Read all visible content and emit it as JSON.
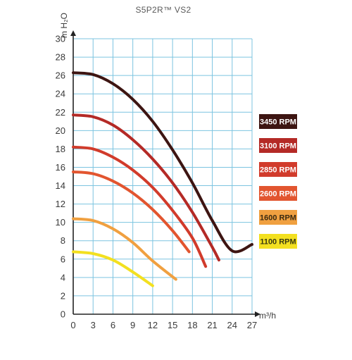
{
  "chart_data": {
    "type": "line",
    "title": "S5P2R™ VS2",
    "xlabel": "m³/h",
    "ylabel": "m H₂O",
    "xlim": [
      0,
      27
    ],
    "ylim": [
      0,
      30
    ],
    "xticks": [
      0,
      3,
      6,
      9,
      12,
      15,
      18,
      21,
      24,
      27
    ],
    "yticks": [
      0,
      2,
      4,
      6,
      8,
      10,
      12,
      14,
      16,
      18,
      20,
      22,
      24,
      26,
      28,
      30
    ],
    "grid": true,
    "legend_position": "right",
    "series": [
      {
        "name": "3450 RPM",
        "color": "#3d1512",
        "text_color": "#ffffff",
        "x": [
          0,
          3,
          6,
          9,
          12,
          15,
          18,
          21,
          24,
          27
        ],
        "y": [
          26.3,
          26.1,
          25.1,
          23.4,
          21.0,
          17.9,
          14.3,
          10.2,
          6.9,
          7.6
        ]
      },
      {
        "name": "3100 RPM",
        "color": "#b42a26",
        "text_color": "#ffffff",
        "x": [
          0,
          3,
          6,
          9,
          12,
          15,
          18,
          21,
          22
        ],
        "y": [
          21.7,
          21.5,
          20.6,
          19.0,
          16.9,
          14.3,
          11.1,
          7.3,
          5.9
        ]
      },
      {
        "name": "2850 RPM",
        "color": "#d13b2b",
        "text_color": "#ffffff",
        "x": [
          0,
          3,
          6,
          9,
          12,
          15,
          18,
          20
        ],
        "y": [
          18.2,
          18.0,
          17.1,
          15.7,
          13.8,
          11.3,
          8.3,
          5.2
        ]
      },
      {
        "name": "2600 RPM",
        "color": "#e2552f",
        "text_color": "#ffffff",
        "x": [
          0,
          3,
          6,
          9,
          12,
          15,
          17.5
        ],
        "y": [
          15.5,
          15.3,
          14.5,
          13.2,
          11.4,
          9.1,
          6.8
        ]
      },
      {
        "name": "1600 RPM",
        "color": "#f0a040",
        "text_color": "#3a2a10",
        "x": [
          0,
          3,
          6,
          9,
          12,
          15.5
        ],
        "y": [
          10.4,
          10.2,
          9.3,
          7.8,
          5.8,
          3.8
        ]
      },
      {
        "name": "1100 RPM",
        "color": "#f3e020",
        "text_color": "#3a3a10",
        "x": [
          0,
          3,
          6,
          9,
          12
        ],
        "y": [
          6.8,
          6.6,
          5.9,
          4.6,
          3.1
        ]
      }
    ]
  }
}
